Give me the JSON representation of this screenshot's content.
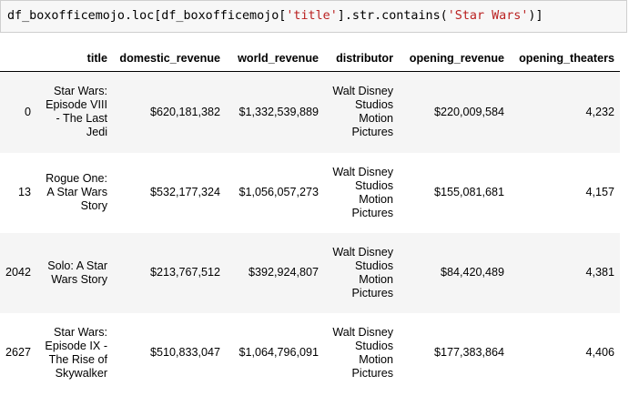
{
  "code": {
    "prefix": "df_boxofficemojo.loc[df_boxofficemojo[",
    "str1": "'title'",
    "middle": "].str.contains(",
    "str2": "'Star Wars'",
    "suffix": ")]"
  },
  "table": {
    "index_header": "",
    "columns": [
      "title",
      "domestic_revenue",
      "world_revenue",
      "distributor",
      "opening_revenue",
      "opening_theaters"
    ],
    "rows": [
      {
        "index": "0",
        "title": "Star Wars: Episode VIII - The Last Jedi",
        "domestic_revenue": "$620,181,382",
        "world_revenue": "$1,332,539,889",
        "distributor": "Walt Disney Studios Motion Pictures",
        "opening_revenue": "$220,009,584",
        "opening_theaters": "4,232"
      },
      {
        "index": "13",
        "title": "Rogue One: A Star Wars Story",
        "domestic_revenue": "$532,177,324",
        "world_revenue": "$1,056,057,273",
        "distributor": "Walt Disney Studios Motion Pictures",
        "opening_revenue": "$155,081,681",
        "opening_theaters": "4,157"
      },
      {
        "index": "2042",
        "title": "Solo: A Star Wars Story",
        "domestic_revenue": "$213,767,512",
        "world_revenue": "$392,924,807",
        "distributor": "Walt Disney Studios Motion Pictures",
        "opening_revenue": "$84,420,489",
        "opening_theaters": "4,381"
      },
      {
        "index": "2627",
        "title": "Star Wars: Episode IX - The Rise of Skywalker",
        "domestic_revenue": "$510,833,047",
        "world_revenue": "$1,064,796,091",
        "distributor": "Walt Disney Studios Motion Pictures",
        "opening_revenue": "$177,383,864",
        "opening_theaters": "4,406"
      }
    ]
  }
}
